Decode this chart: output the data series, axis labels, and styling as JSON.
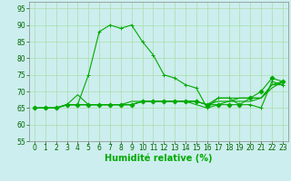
{
  "series": [
    {
      "x": [
        0,
        1,
        2,
        3,
        4,
        5,
        6,
        7,
        8,
        9,
        10,
        11,
        12,
        13,
        14,
        15,
        16,
        17,
        18,
        19,
        20,
        21,
        22,
        23
      ],
      "y": [
        65,
        65,
        65,
        66,
        66,
        75,
        88,
        90,
        89,
        90,
        85,
        81,
        75,
        74,
        72,
        71,
        65,
        68,
        68,
        66,
        66,
        65,
        73,
        72
      ],
      "marker": "+"
    },
    {
      "x": [
        0,
        1,
        2,
        3,
        4,
        5,
        6,
        7,
        8,
        9,
        10,
        11,
        12,
        13,
        14,
        15,
        16,
        17,
        18,
        19,
        20,
        21,
        22,
        23
      ],
      "y": [
        65,
        65,
        65,
        66,
        69,
        66,
        66,
        66,
        66,
        66,
        67,
        67,
        67,
        67,
        67,
        67,
        66,
        68,
        68,
        68,
        68,
        68,
        72,
        72
      ],
      "marker": null
    },
    {
      "x": [
        0,
        1,
        2,
        3,
        4,
        5,
        6,
        7,
        8,
        9,
        10,
        11,
        12,
        13,
        14,
        15,
        16,
        17,
        18,
        19,
        20,
        21,
        22,
        23
      ],
      "y": [
        65,
        65,
        65,
        66,
        66,
        66,
        66,
        66,
        66,
        67,
        67,
        67,
        67,
        67,
        67,
        67,
        66,
        67,
        67,
        67,
        67,
        68,
        72,
        73
      ],
      "marker": null
    },
    {
      "x": [
        0,
        1,
        2,
        3,
        4,
        5,
        6,
        7,
        8,
        9,
        10,
        11,
        12,
        13,
        14,
        15,
        16,
        17,
        18,
        19,
        20,
        21,
        22,
        23
      ],
      "y": [
        65,
        65,
        65,
        66,
        66,
        66,
        66,
        66,
        66,
        66,
        67,
        67,
        67,
        67,
        67,
        67,
        66,
        66,
        66,
        66,
        68,
        70,
        74,
        73
      ],
      "marker": "D"
    },
    {
      "x": [
        0,
        1,
        2,
        3,
        4,
        5,
        6,
        7,
        8,
        9,
        10,
        11,
        12,
        13,
        14,
        15,
        16,
        17,
        18,
        19,
        20,
        21,
        22,
        23
      ],
      "y": [
        65,
        65,
        65,
        66,
        66,
        66,
        66,
        66,
        66,
        66,
        67,
        67,
        67,
        67,
        67,
        66,
        65,
        66,
        67,
        68,
        68,
        68,
        71,
        73
      ],
      "marker": null
    }
  ],
  "line_color": "#00aa00",
  "xlabel": "Humidité relative (%)",
  "xlim": [
    -0.5,
    23.5
  ],
  "ylim": [
    55,
    97
  ],
  "yticks": [
    55,
    60,
    65,
    70,
    75,
    80,
    85,
    90,
    95
  ],
  "xticks": [
    0,
    1,
    2,
    3,
    4,
    5,
    6,
    7,
    8,
    9,
    10,
    11,
    12,
    13,
    14,
    15,
    16,
    17,
    18,
    19,
    20,
    21,
    22,
    23
  ],
  "grid_color": "#aaddaa",
  "background_color": "#cceeee",
  "tick_fontsize": 5.5,
  "xlabel_fontsize": 7.0,
  "marker_size": 2.5,
  "line_width": 0.8
}
